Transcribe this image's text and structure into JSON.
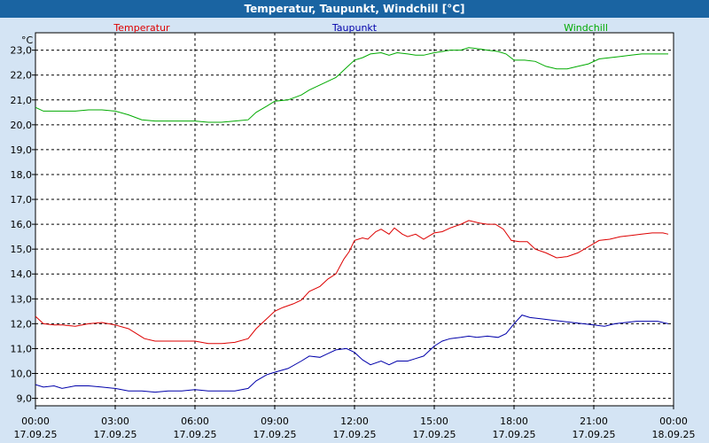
{
  "title": "Temperatur, Taupunkt, Windchill [°C]",
  "colors": {
    "header_bg": "#1a64a2",
    "page_bg": "#d4e4f4",
    "plot_bg": "#ffffff",
    "grid": "#000000"
  },
  "chart_data": {
    "type": "line",
    "title": "Temperatur, Taupunkt, Windchill [°C]",
    "unit": "°C",
    "ylim": [
      8.7,
      23.7
    ],
    "xlim": [
      0,
      24
    ],
    "grid": true,
    "legend_position": "top",
    "y_ticks": [
      {
        "v": 9,
        "label": "9,0"
      },
      {
        "v": 10,
        "label": "10,0"
      },
      {
        "v": 11,
        "label": "11,0"
      },
      {
        "v": 12,
        "label": "12,0"
      },
      {
        "v": 13,
        "label": "13,0"
      },
      {
        "v": 14,
        "label": "14,0"
      },
      {
        "v": 15,
        "label": "15,0"
      },
      {
        "v": 16,
        "label": "16,0"
      },
      {
        "v": 17,
        "label": "17,0"
      },
      {
        "v": 18,
        "label": "18,0"
      },
      {
        "v": 19,
        "label": "19,0"
      },
      {
        "v": 20,
        "label": "20,0"
      },
      {
        "v": 21,
        "label": "21,0"
      },
      {
        "v": 22,
        "label": "22,0"
      },
      {
        "v": 23,
        "label": "23,0"
      }
    ],
    "x_ticks": [
      {
        "v": 0,
        "time": "00:00",
        "date": "17.09.25"
      },
      {
        "v": 3,
        "time": "03:00",
        "date": "17.09.25"
      },
      {
        "v": 6,
        "time": "06:00",
        "date": "17.09.25"
      },
      {
        "v": 9,
        "time": "09:00",
        "date": "17.09.25"
      },
      {
        "v": 12,
        "time": "12:00",
        "date": "17.09.25"
      },
      {
        "v": 15,
        "time": "15:00",
        "date": "17.09.25"
      },
      {
        "v": 18,
        "time": "18:00",
        "date": "17.09.25"
      },
      {
        "v": 21,
        "time": "21:00",
        "date": "17.09.25"
      },
      {
        "v": 24,
        "time": "00:00",
        "date": "18.09.25"
      }
    ],
    "series": [
      {
        "name": "Temperatur",
        "color": "#dd0000",
        "legend_anchor": 4,
        "points": [
          [
            0,
            12.3
          ],
          [
            0.3,
            12.0
          ],
          [
            0.7,
            11.95
          ],
          [
            1.0,
            11.95
          ],
          [
            1.5,
            11.9
          ],
          [
            2.0,
            12.0
          ],
          [
            2.5,
            12.05
          ],
          [
            3.0,
            11.95
          ],
          [
            3.5,
            11.8
          ],
          [
            3.8,
            11.6
          ],
          [
            4.1,
            11.4
          ],
          [
            4.5,
            11.3
          ],
          [
            5.0,
            11.3
          ],
          [
            5.5,
            11.3
          ],
          [
            6.0,
            11.3
          ],
          [
            6.5,
            11.2
          ],
          [
            7.0,
            11.2
          ],
          [
            7.5,
            11.25
          ],
          [
            8.0,
            11.4
          ],
          [
            8.3,
            11.8
          ],
          [
            8.7,
            12.2
          ],
          [
            9.0,
            12.5
          ],
          [
            9.3,
            12.65
          ],
          [
            9.7,
            12.8
          ],
          [
            10.0,
            12.95
          ],
          [
            10.3,
            13.3
          ],
          [
            10.7,
            13.5
          ],
          [
            11.0,
            13.8
          ],
          [
            11.3,
            14.0
          ],
          [
            11.6,
            14.6
          ],
          [
            11.8,
            14.9
          ],
          [
            12.0,
            15.35
          ],
          [
            12.3,
            15.45
          ],
          [
            12.5,
            15.4
          ],
          [
            12.8,
            15.7
          ],
          [
            13.0,
            15.8
          ],
          [
            13.3,
            15.6
          ],
          [
            13.5,
            15.85
          ],
          [
            13.8,
            15.6
          ],
          [
            14.0,
            15.5
          ],
          [
            14.3,
            15.6
          ],
          [
            14.6,
            15.4
          ],
          [
            15.0,
            15.65
          ],
          [
            15.3,
            15.7
          ],
          [
            15.6,
            15.85
          ],
          [
            16.0,
            16.0
          ],
          [
            16.3,
            16.15
          ],
          [
            16.7,
            16.05
          ],
          [
            17.0,
            16.0
          ],
          [
            17.3,
            16.0
          ],
          [
            17.6,
            15.8
          ],
          [
            17.9,
            15.35
          ],
          [
            18.2,
            15.3
          ],
          [
            18.5,
            15.3
          ],
          [
            18.8,
            15.0
          ],
          [
            19.2,
            14.85
          ],
          [
            19.6,
            14.65
          ],
          [
            20.0,
            14.7
          ],
          [
            20.4,
            14.85
          ],
          [
            20.8,
            15.1
          ],
          [
            21.2,
            15.35
          ],
          [
            21.6,
            15.4
          ],
          [
            22.0,
            15.5
          ],
          [
            22.4,
            15.55
          ],
          [
            22.8,
            15.6
          ],
          [
            23.2,
            15.65
          ],
          [
            23.6,
            15.65
          ],
          [
            23.8,
            15.6
          ]
        ]
      },
      {
        "name": "Taupunkt",
        "color": "#0000aa",
        "legend_anchor": 12,
        "points": [
          [
            0,
            9.55
          ],
          [
            0.3,
            9.45
          ],
          [
            0.7,
            9.5
          ],
          [
            1.0,
            9.4
          ],
          [
            1.5,
            9.5
          ],
          [
            2.0,
            9.5
          ],
          [
            2.5,
            9.45
          ],
          [
            3.0,
            9.4
          ],
          [
            3.5,
            9.3
          ],
          [
            4.0,
            9.3
          ],
          [
            4.5,
            9.25
          ],
          [
            5.0,
            9.3
          ],
          [
            5.5,
            9.3
          ],
          [
            6.0,
            9.35
          ],
          [
            6.5,
            9.3
          ],
          [
            7.0,
            9.3
          ],
          [
            7.5,
            9.3
          ],
          [
            8.0,
            9.4
          ],
          [
            8.3,
            9.7
          ],
          [
            8.7,
            9.95
          ],
          [
            9.0,
            10.05
          ],
          [
            9.5,
            10.2
          ],
          [
            10.0,
            10.5
          ],
          [
            10.3,
            10.7
          ],
          [
            10.7,
            10.65
          ],
          [
            11.0,
            10.8
          ],
          [
            11.3,
            10.95
          ],
          [
            11.7,
            11.0
          ],
          [
            12.0,
            10.85
          ],
          [
            12.3,
            10.55
          ],
          [
            12.6,
            10.35
          ],
          [
            13.0,
            10.5
          ],
          [
            13.3,
            10.35
          ],
          [
            13.6,
            10.5
          ],
          [
            14.0,
            10.5
          ],
          [
            14.3,
            10.6
          ],
          [
            14.6,
            10.7
          ],
          [
            15.0,
            11.1
          ],
          [
            15.3,
            11.3
          ],
          [
            15.6,
            11.4
          ],
          [
            16.0,
            11.45
          ],
          [
            16.3,
            11.5
          ],
          [
            16.6,
            11.45
          ],
          [
            17.0,
            11.5
          ],
          [
            17.4,
            11.45
          ],
          [
            17.7,
            11.6
          ],
          [
            18.0,
            12.0
          ],
          [
            18.3,
            12.35
          ],
          [
            18.6,
            12.25
          ],
          [
            19.0,
            12.2
          ],
          [
            19.4,
            12.15
          ],
          [
            19.8,
            12.1
          ],
          [
            20.2,
            12.05
          ],
          [
            20.6,
            12.0
          ],
          [
            21.0,
            11.95
          ],
          [
            21.4,
            11.9
          ],
          [
            21.8,
            12.0
          ],
          [
            22.2,
            12.05
          ],
          [
            22.6,
            12.1
          ],
          [
            23.0,
            12.1
          ],
          [
            23.4,
            12.1
          ],
          [
            23.8,
            12.0
          ]
        ]
      },
      {
        "name": "Windchill",
        "color": "#00aa00",
        "legend_anchor": 20.7,
        "points": [
          [
            0,
            20.7
          ],
          [
            0.3,
            20.55
          ],
          [
            0.7,
            20.55
          ],
          [
            1.0,
            20.55
          ],
          [
            1.5,
            20.55
          ],
          [
            2.0,
            20.6
          ],
          [
            2.5,
            20.6
          ],
          [
            3.0,
            20.55
          ],
          [
            3.5,
            20.4
          ],
          [
            4.0,
            20.2
          ],
          [
            4.5,
            20.15
          ],
          [
            5.0,
            20.15
          ],
          [
            5.5,
            20.15
          ],
          [
            6.0,
            20.15
          ],
          [
            6.5,
            20.1
          ],
          [
            7.0,
            20.1
          ],
          [
            7.5,
            20.15
          ],
          [
            8.0,
            20.2
          ],
          [
            8.3,
            20.5
          ],
          [
            8.7,
            20.75
          ],
          [
            9.0,
            20.95
          ],
          [
            9.5,
            21.0
          ],
          [
            10.0,
            21.2
          ],
          [
            10.3,
            21.4
          ],
          [
            10.7,
            21.6
          ],
          [
            11.0,
            21.75
          ],
          [
            11.3,
            21.9
          ],
          [
            11.7,
            22.3
          ],
          [
            12.0,
            22.6
          ],
          [
            12.3,
            22.7
          ],
          [
            12.6,
            22.85
          ],
          [
            13.0,
            22.9
          ],
          [
            13.3,
            22.8
          ],
          [
            13.6,
            22.9
          ],
          [
            14.0,
            22.85
          ],
          [
            14.3,
            22.8
          ],
          [
            14.6,
            22.8
          ],
          [
            15.0,
            22.9
          ],
          [
            15.3,
            22.95
          ],
          [
            15.6,
            23.0
          ],
          [
            16.0,
            23.0
          ],
          [
            16.3,
            23.1
          ],
          [
            16.7,
            23.05
          ],
          [
            17.0,
            23.0
          ],
          [
            17.4,
            22.95
          ],
          [
            17.7,
            22.85
          ],
          [
            18.0,
            22.6
          ],
          [
            18.4,
            22.6
          ],
          [
            18.8,
            22.55
          ],
          [
            19.2,
            22.35
          ],
          [
            19.6,
            22.25
          ],
          [
            20.0,
            22.25
          ],
          [
            20.4,
            22.35
          ],
          [
            20.8,
            22.45
          ],
          [
            21.2,
            22.65
          ],
          [
            21.6,
            22.7
          ],
          [
            22.0,
            22.75
          ],
          [
            22.4,
            22.8
          ],
          [
            22.8,
            22.85
          ],
          [
            23.2,
            22.85
          ],
          [
            23.6,
            22.85
          ],
          [
            23.8,
            22.85
          ]
        ]
      }
    ]
  }
}
